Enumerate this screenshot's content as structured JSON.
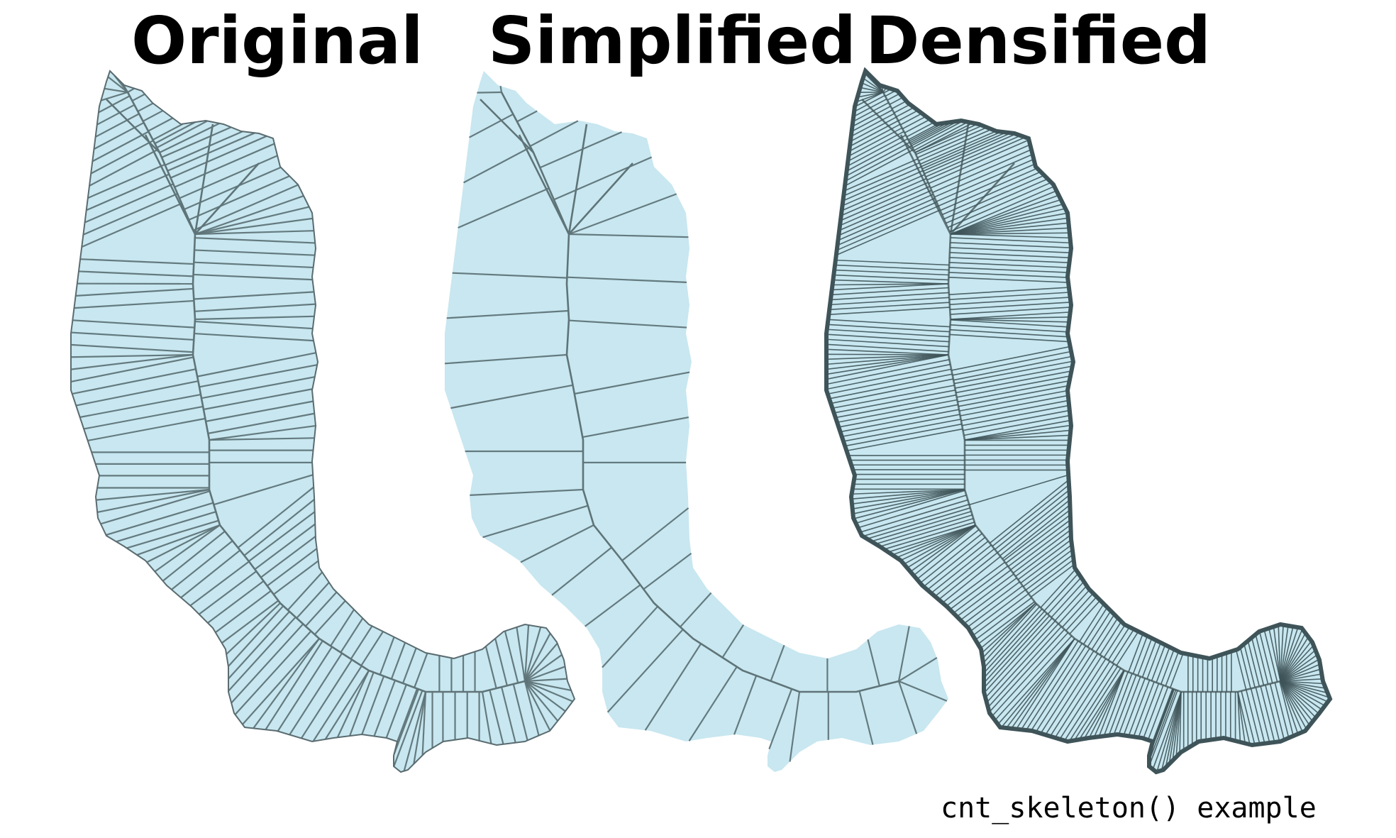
{
  "panels": [
    {
      "title": "Original",
      "density": "original"
    },
    {
      "title": "Simplified",
      "density": "simplified"
    },
    {
      "title": "Densified",
      "density": "densified"
    }
  ],
  "caption": "cnt_skeleton() example",
  "colors": {
    "fill": "#c8e7f0",
    "skeleton": "#5f7478",
    "densified_edge": "#3f5459"
  }
}
